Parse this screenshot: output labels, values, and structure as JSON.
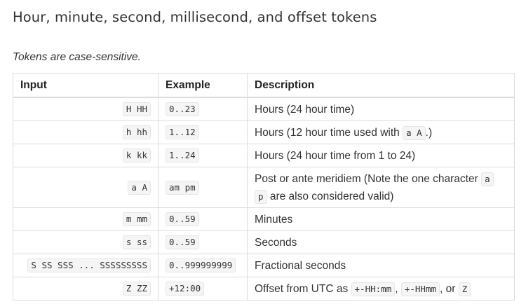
{
  "heading": "Hour, minute, second, millisecond, and offset tokens",
  "note": "Tokens are case-sensitive.",
  "table": {
    "headers": {
      "input": "Input",
      "example": "Example",
      "description": "Description"
    },
    "rows": [
      {
        "input": "H HH",
        "example": "0..23",
        "desc": {
          "text1": "Hours (24 hour time)"
        }
      },
      {
        "input": "h hh",
        "example": "1..12",
        "desc": {
          "text1": "Hours (12 hour time used with ",
          "code1": "a A",
          "text2": ".)"
        }
      },
      {
        "input": "k kk",
        "example": "1..24",
        "desc": {
          "text1": "Hours (24 hour time from 1 to 24)"
        }
      },
      {
        "input": "a A",
        "example": "am pm",
        "desc": {
          "text1": "Post or ante meridiem (Note the one character ",
          "code1": "a",
          "text2": " ",
          "code2": "p",
          "text3": " are also considered valid)"
        }
      },
      {
        "input": "m mm",
        "example": "0..59",
        "desc": {
          "text1": "Minutes"
        }
      },
      {
        "input": "s ss",
        "example": "0..59",
        "desc": {
          "text1": "Seconds"
        }
      },
      {
        "input": "S SS SSS ... SSSSSSSSS",
        "example": "0..999999999",
        "desc": {
          "text1": "Fractional seconds"
        }
      },
      {
        "input": "Z ZZ",
        "example": "+12:00",
        "desc": {
          "text1": "Offset from UTC as ",
          "code1": "+-HH:mm",
          "text2": ", ",
          "code2": "+-HHmm",
          "text3": ", or ",
          "code3": "Z"
        }
      }
    ]
  }
}
